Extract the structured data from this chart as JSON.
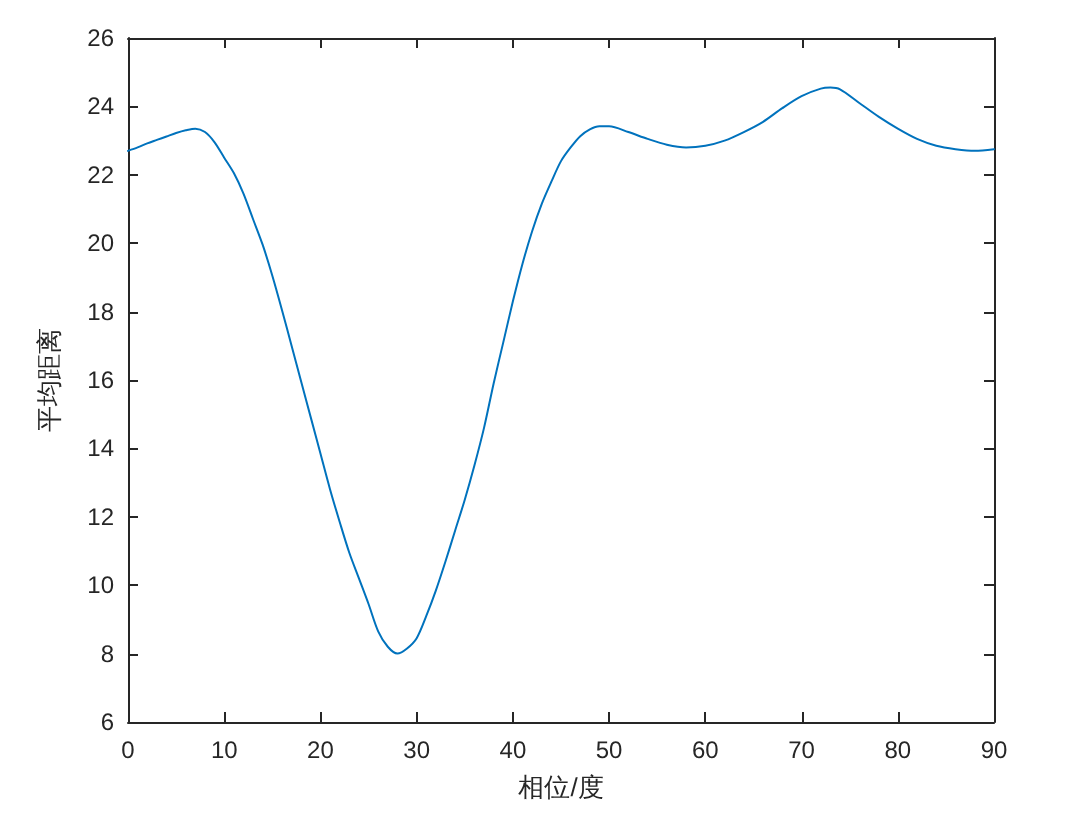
{
  "chart_data": {
    "type": "line",
    "xlabel": "相位/度",
    "ylabel": "平均距离",
    "x": [
      0,
      1,
      2,
      3,
      4,
      5,
      6,
      7,
      8,
      9,
      10,
      11,
      12,
      13,
      14,
      15,
      16,
      17,
      18,
      19,
      20,
      21,
      22,
      23,
      24,
      25,
      26,
      27,
      28,
      29,
      30,
      31,
      32,
      33,
      34,
      35,
      36,
      37,
      38,
      39,
      40,
      41,
      42,
      43,
      44,
      45,
      46,
      47,
      48,
      49,
      50,
      52,
      54,
      56,
      58,
      60,
      62,
      64,
      66,
      68,
      70,
      72,
      73,
      74,
      76,
      78,
      80,
      82,
      84,
      86,
      88,
      90
    ],
    "series": [
      {
        "color": "#0072bd",
        "values": [
          22.7,
          22.8,
          22.92,
          23.02,
          23.12,
          23.22,
          23.3,
          23.35,
          23.25,
          22.95,
          22.5,
          22.05,
          21.45,
          20.7,
          19.95,
          19.05,
          18.05,
          17.0,
          15.95,
          14.9,
          13.85,
          12.8,
          11.85,
          10.95,
          10.2,
          9.45,
          8.65,
          8.2,
          8.0,
          8.15,
          8.45,
          9.1,
          9.85,
          10.7,
          11.6,
          12.5,
          13.5,
          14.6,
          15.9,
          17.1,
          18.3,
          19.4,
          20.35,
          21.15,
          21.8,
          22.4,
          22.8,
          23.13,
          23.33,
          23.42,
          23.42,
          23.25,
          23.05,
          22.88,
          22.8,
          22.85,
          23.0,
          23.25,
          23.55,
          23.95,
          24.3,
          24.52,
          24.55,
          24.5,
          24.1,
          23.7,
          23.35,
          23.05,
          22.85,
          22.75,
          22.7,
          22.75
        ]
      }
    ],
    "xlim": [
      0,
      90
    ],
    "xticks": [
      0,
      10,
      20,
      30,
      40,
      50,
      60,
      70,
      80,
      90
    ],
    "ylim": [
      6,
      26
    ],
    "yticks": [
      6,
      8,
      10,
      12,
      14,
      16,
      18,
      20,
      22,
      24,
      26
    ],
    "grid": false,
    "line_style": "solid"
  }
}
